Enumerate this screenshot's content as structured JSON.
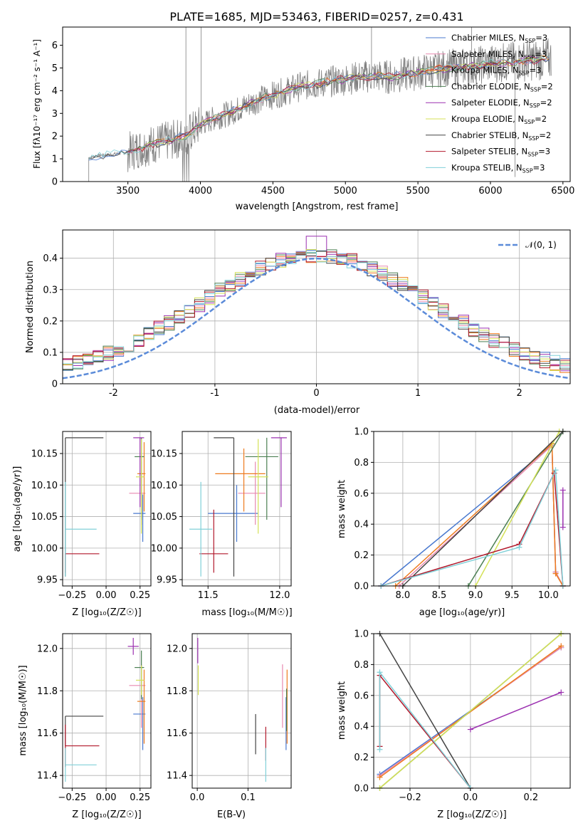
{
  "title": "PLATE=1685, MJD=53463, FIBERID=0257, z=0.431",
  "model_colors": [
    "#4878cf",
    "#e889b0",
    "#ee7b1e",
    "#4b7f52",
    "#9b30b0",
    "#d4e157",
    "#444444",
    "#b2182b",
    "#80d0d8"
  ],
  "legend": {
    "labels": [
      "Chabrier MILES, N",
      "Salpeter MILES, N",
      "Kroupa MILES, N",
      "Chabrier ELODIE, N",
      "Salpeter ELODIE, N",
      "Kroupa ELODIE, N",
      "Chabrier STELIB, N",
      "Salpeter STELIB, N",
      "Kroupa STELIB, N"
    ],
    "sub": "SSP",
    "values": [
      "=3",
      "=3",
      "=3",
      "=2",
      "=2",
      "=2",
      "=2",
      "=3",
      "=3"
    ],
    "gauss_label": "𝒩(0, 1)"
  },
  "axes_text": {
    "spec_xlabel": "wavelength [Angstrom, rest frame]",
    "spec_ylabel": "Flux [fλ10⁻¹⁷ erg cm⁻² s⁻¹ A⁻¹]",
    "hist_xlabel": "(data-model)/error",
    "hist_ylabel": "Normed distribution",
    "age_label": "age  [log₁₀(age/yr)]",
    "z_label": "Z [log₁₀(Z/Z☉)]",
    "mass_label": "mass [log₁₀(M/M☉)]",
    "ebv_label": "E(B-V)",
    "mw_label": "mass weight"
  },
  "chart_data": [
    {
      "type": "line",
      "name": "spectrum",
      "xlim": [
        3050,
        6550
      ],
      "ylim": [
        0,
        6.8
      ],
      "xticks": [
        3500,
        4000,
        4500,
        5000,
        5500,
        6000,
        6500
      ],
      "yticks": [
        0,
        1,
        2,
        3,
        4,
        5,
        6
      ],
      "x": [
        3230,
        3300,
        3400,
        3500,
        3600,
        3700,
        3800,
        3900,
        4000,
        4100,
        4200,
        4300,
        4400,
        4500,
        4600,
        4700,
        4800,
        4900,
        5000,
        5100,
        5200,
        5300,
        5400,
        5500,
        5600,
        5700,
        5800,
        5900,
        6000,
        6100,
        6200,
        6300,
        6420
      ],
      "y": [
        1.05,
        1.15,
        1.2,
        1.3,
        1.5,
        1.7,
        1.8,
        2.0,
        2.5,
        2.8,
        3.0,
        3.3,
        3.6,
        3.8,
        4.0,
        4.2,
        4.3,
        4.4,
        4.5,
        4.6,
        4.65,
        4.6,
        4.7,
        4.8,
        4.9,
        5.0,
        5.05,
        5.1,
        5.2,
        5.25,
        5.3,
        5.35,
        5.4
      ],
      "grid": false
    },
    {
      "type": "bar",
      "name": "residual_histogram",
      "xlim": [
        -2.5,
        2.5
      ],
      "ylim": [
        0,
        0.49
      ],
      "xticks": [
        -2,
        -1,
        0,
        1,
        2
      ],
      "yticks": [
        0.0,
        0.1,
        0.2,
        0.3,
        0.4
      ],
      "bin_width": 0.1,
      "bin_start": -2.5,
      "grid": true
    },
    {
      "type": "scatter",
      "name": "age_vs_Z",
      "xlim": [
        -0.32,
        0.33
      ],
      "ylim": [
        9.94,
        10.185
      ],
      "xticks": [
        -0.25,
        0.0,
        0.25
      ],
      "xtick_labels": [
        "−0.25",
        "0.00",
        "0.25"
      ],
      "yticks": [
        9.95,
        10.0,
        10.05,
        10.1,
        10.15
      ],
      "ytick_labels": [
        "9.95",
        "10.00",
        "10.05",
        "10.10",
        "10.15"
      ],
      "points": [
        {
          "x": 0.27,
          "y": 10.055,
          "dx": [
            0.07,
            0.02
          ],
          "dy": [
            0.045,
            0.03
          ]
        },
        {
          "x": 0.26,
          "y": 10.087,
          "dx": [
            0.09,
            0.03
          ],
          "dy": [
            0.05,
            0.05
          ]
        },
        {
          "x": 0.28,
          "y": 10.118,
          "dx": [
            0.05,
            0.01
          ],
          "dy": [
            0.06,
            0.05
          ]
        },
        {
          "x": 0.26,
          "y": 10.145,
          "dx": [
            0.05,
            0.02
          ],
          "dy": [
            0.1,
            0.03
          ]
        },
        {
          "x": 0.25,
          "y": 10.175,
          "dx": [
            0.05,
            0.03
          ],
          "dy": [
            0.11,
            0.0
          ]
        },
        {
          "x": 0.26,
          "y": 10.113,
          "dx": [
            0.04,
            0.02
          ],
          "dy": [
            0.09,
            0.06
          ]
        },
        {
          "x": -0.3,
          "y": 10.175,
          "dx": [
            0.0,
            0.28
          ],
          "dy": [
            0.22,
            0.0
          ]
        },
        {
          "x": -0.3,
          "y": 9.991,
          "dx": [
            0.0,
            0.25
          ],
          "dy": [
            0.03,
            0.0
          ]
        },
        {
          "x": -0.3,
          "y": 10.03,
          "dx": [
            0.0,
            0.23
          ],
          "dy": [
            0.075,
            0.075
          ]
        }
      ]
    },
    {
      "type": "scatter",
      "name": "age_vs_mass",
      "xlim": [
        11.32,
        12.08
      ],
      "ylim": [
        9.94,
        10.185
      ],
      "xticks": [
        11.5,
        12.0
      ],
      "xtick_labels": [
        "11.5",
        "12.0"
      ],
      "yticks": [
        9.95,
        10.0,
        10.05,
        10.1,
        10.15
      ],
      "ytick_labels": [
        "9.95",
        "10.00",
        "10.05",
        "10.10",
        "10.15"
      ],
      "points": [
        {
          "x": 11.7,
          "y": 10.055,
          "dx": [
            0.2,
            0.15
          ],
          "dy": [
            0.045,
            0.045
          ]
        },
        {
          "x": 11.83,
          "y": 10.087,
          "dx": [
            0.12,
            0.07
          ],
          "dy": [
            0.05,
            0.05
          ]
        },
        {
          "x": 11.75,
          "y": 10.118,
          "dx": [
            0.2,
            0.15
          ],
          "dy": [
            0.06,
            0.04
          ]
        },
        {
          "x": 11.91,
          "y": 10.145,
          "dx": [
            0.15,
            0.08
          ],
          "dy": [
            0.1,
            0.03
          ]
        },
        {
          "x": 12.01,
          "y": 10.175,
          "dx": [
            0.07,
            0.04
          ],
          "dy": [
            0.11,
            0.0
          ]
        },
        {
          "x": 11.85,
          "y": 10.113,
          "dx": [
            0.07,
            0.07
          ],
          "dy": [
            0.09,
            0.06
          ]
        },
        {
          "x": 11.68,
          "y": 10.175,
          "dx": [
            0.14,
            0.0
          ],
          "dy": [
            0.22,
            0.0
          ]
        },
        {
          "x": 11.54,
          "y": 9.991,
          "dx": [
            0.1,
            0.1
          ],
          "dy": [
            0.03,
            0.07
          ]
        },
        {
          "x": 11.45,
          "y": 10.03,
          "dx": [
            0.08,
            0.08
          ],
          "dy": [
            0.075,
            0.075
          ]
        }
      ]
    },
    {
      "type": "line",
      "name": "mass_weight_vs_age",
      "xlim": [
        7.6,
        10.3
      ],
      "ylim": [
        0,
        1
      ],
      "xticks": [
        8.0,
        8.5,
        9.0,
        9.5,
        10.0
      ],
      "xtick_labels": [
        "8.0",
        "8.5",
        "9.0",
        "9.5",
        "10.0"
      ],
      "yticks": [
        0,
        0.2,
        0.4,
        0.6,
        0.8,
        1.0
      ],
      "ytick_labels": [
        "0.0",
        "0.2",
        "0.4",
        "0.6",
        "0.8",
        "1.0"
      ],
      "series": [
        {
          "x": [
            7.7,
            10.05,
            10.1,
            10.2
          ],
          "y": [
            0.0,
            0.91,
            0.09,
            0.0
          ]
        },
        {
          "x": [
            7.95,
            10.05,
            10.1,
            10.2
          ],
          "y": [
            0.0,
            0.91,
            0.09,
            0.0
          ]
        },
        {
          "x": [
            7.9,
            10.05,
            10.1,
            10.2
          ],
          "y": [
            0.0,
            0.92,
            0.08,
            0.0
          ]
        },
        {
          "x": [
            8.9,
            10.2
          ],
          "y": [
            0.0,
            1.0
          ]
        },
        {
          "x": [
            10.2,
            10.2
          ],
          "y": [
            0.38,
            0.62
          ]
        },
        {
          "x": [
            9.0,
            10.15
          ],
          "y": [
            0.0,
            1.0
          ]
        },
        {
          "x": [
            8.0,
            10.2
          ],
          "y": [
            0.0,
            1.0
          ]
        },
        {
          "x": [
            7.7,
            9.6,
            10.08,
            10.2
          ],
          "y": [
            0.0,
            0.27,
            0.73,
            0.0
          ]
        },
        {
          "x": [
            7.7,
            9.6,
            10.1,
            10.2
          ],
          "y": [
            0.0,
            0.25,
            0.75,
            0.0
          ]
        }
      ]
    },
    {
      "type": "scatter",
      "name": "mass_vs_Z",
      "xlim": [
        -0.32,
        0.33
      ],
      "ylim": [
        11.34,
        12.07
      ],
      "xticks": [
        -0.25,
        0.0,
        0.25
      ],
      "xtick_labels": [
        "−0.25",
        "0.00",
        "0.25"
      ],
      "yticks": [
        11.4,
        11.6,
        11.8,
        12.0
      ],
      "ytick_labels": [
        "11.4",
        "11.6",
        "11.8",
        "12.0"
      ],
      "points": [
        {
          "x": 0.27,
          "y": 11.69,
          "dx": [
            0.07,
            0.02
          ],
          "dy": [
            0.17,
            0.08
          ]
        },
        {
          "x": 0.26,
          "y": 11.825,
          "dx": [
            0.09,
            0.03
          ],
          "dy": [
            0.2,
            0.1
          ]
        },
        {
          "x": 0.28,
          "y": 11.75,
          "dx": [
            0.05,
            0.01
          ],
          "dy": [
            0.2,
            0.15
          ]
        },
        {
          "x": 0.26,
          "y": 11.91,
          "dx": [
            0.05,
            0.02
          ],
          "dy": [
            0.15,
            0.08
          ]
        },
        {
          "x": 0.2,
          "y": 12.01,
          "dx": [
            0.04,
            0.04
          ],
          "dy": [
            0.04,
            0.04
          ]
        },
        {
          "x": 0.26,
          "y": 11.85,
          "dx": [
            0.04,
            0.02
          ],
          "dy": [
            0.07,
            0.07
          ]
        },
        {
          "x": -0.3,
          "y": 11.68,
          "dx": [
            0.0,
            0.28
          ],
          "dy": [
            0.14,
            0.0
          ]
        },
        {
          "x": -0.3,
          "y": 11.54,
          "dx": [
            0.0,
            0.25
          ],
          "dy": [
            0.1,
            0.1
          ]
        },
        {
          "x": -0.3,
          "y": 11.45,
          "dx": [
            0.0,
            0.23
          ],
          "dy": [
            0.08,
            0.08
          ]
        }
      ]
    },
    {
      "type": "scatter",
      "name": "mass_vs_EBV",
      "xlim": [
        -0.01,
        0.185
      ],
      "ylim": [
        11.34,
        12.07
      ],
      "xticks": [
        0.0,
        0.1
      ],
      "xtick_labels": [
        "0.0",
        "0.1"
      ],
      "yticks": [
        11.4,
        11.6,
        11.8,
        12.0
      ],
      "ytick_labels": [
        "11.4",
        "11.6",
        "11.8",
        "12.0"
      ],
      "points": [
        {
          "x": 0.175,
          "y": 11.69,
          "dx": [
            0,
            0
          ],
          "dy": [
            0.17,
            0.08
          ]
        },
        {
          "x": 0.168,
          "y": 11.825,
          "dx": [
            0,
            0
          ],
          "dy": [
            0.2,
            0.1
          ]
        },
        {
          "x": 0.177,
          "y": 11.75,
          "dx": [
            0,
            0
          ],
          "dy": [
            0.2,
            0.15
          ]
        },
        {
          "x": 0.176,
          "y": 11.76,
          "dx": [
            0,
            0
          ],
          "dy": [
            0.15,
            0.05
          ]
        },
        {
          "x": 0.001,
          "y": 12.0,
          "dx": [
            0,
            0
          ],
          "dy": [
            0.07,
            0.05
          ]
        },
        {
          "x": 0.002,
          "y": 11.85,
          "dx": [
            0,
            0
          ],
          "dy": [
            0.07,
            0.07
          ]
        },
        {
          "x": 0.115,
          "y": 11.6,
          "dx": [
            0,
            0
          ],
          "dy": [
            0.1,
            0.09
          ]
        },
        {
          "x": 0.135,
          "y": 11.55,
          "dx": [
            0,
            0
          ],
          "dy": [
            0.08,
            0.08
          ]
        },
        {
          "x": 0.135,
          "y": 11.45,
          "dx": [
            0,
            0
          ],
          "dy": [
            0.08,
            0.08
          ]
        }
      ]
    },
    {
      "type": "line",
      "name": "mass_weight_vs_Z",
      "xlim": [
        -0.32,
        0.33
      ],
      "ylim": [
        0,
        1
      ],
      "xticks": [
        -0.2,
        0.0,
        0.2
      ],
      "xtick_labels": [
        "−0.2",
        "0.0",
        "0.2"
      ],
      "yticks": [
        0,
        0.2,
        0.4,
        0.6,
        0.8,
        1.0
      ],
      "ytick_labels": [
        "0.0",
        "0.2",
        "0.4",
        "0.6",
        "0.8",
        "1.0"
      ],
      "series": [
        {
          "x": [
            -0.3,
            0.3
          ],
          "y": [
            0.09,
            0.91
          ]
        },
        {
          "x": [
            -0.3,
            0.3
          ],
          "y": [
            0.08,
            0.91
          ]
        },
        {
          "x": [
            -0.3,
            0.3
          ],
          "y": [
            0.07,
            0.92
          ]
        },
        {
          "x": [
            -0.3,
            0.3
          ],
          "y": [
            0.0,
            1.0
          ]
        },
        {
          "x": [
            0.0,
            0.3
          ],
          "y": [
            0.38,
            0.62
          ]
        },
        {
          "x": [
            -0.3,
            0.3
          ],
          "y": [
            0.0,
            1.0
          ]
        },
        {
          "x": [
            -0.3,
            0.0
          ],
          "y": [
            1.0,
            0.0
          ]
        },
        {
          "x": [
            -0.3,
            -0.3,
            0.0
          ],
          "y": [
            0.27,
            0.73,
            0.0
          ]
        },
        {
          "x": [
            -0.3,
            -0.3,
            0.0
          ],
          "y": [
            0.25,
            0.75,
            0.0
          ]
        }
      ]
    }
  ]
}
